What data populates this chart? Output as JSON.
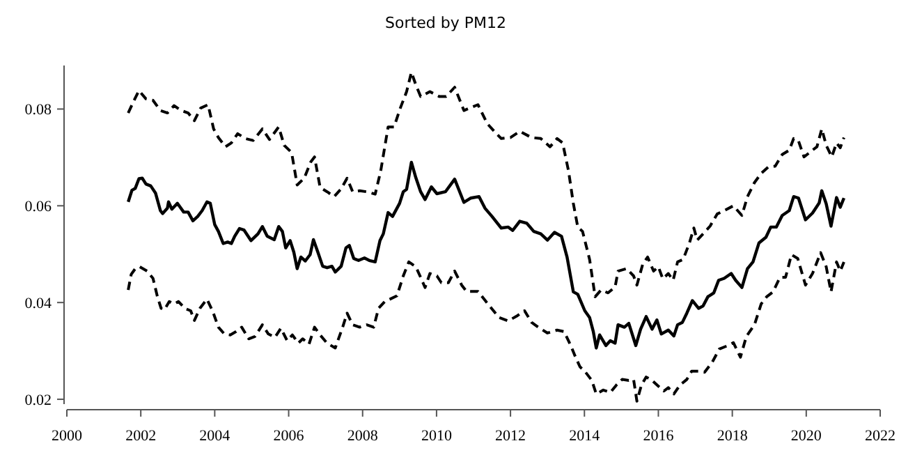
{
  "chart_data": {
    "type": "line",
    "title": "Sorted by PM12",
    "xlim": [
      2000,
      2022
    ],
    "xticks": [
      2000,
      2002,
      2004,
      2006,
      2008,
      2010,
      2012,
      2014,
      2016,
      2018,
      2020,
      2022
    ],
    "ylim": [
      0.019,
      0.089
    ],
    "yticks": [
      0.02,
      0.04,
      0.06,
      0.08
    ],
    "grid": false,
    "marker": "none",
    "series": [
      {
        "color": "#000000",
        "line_style": "dashed",
        "x": [
          2001.66,
          2001.82,
          2001.95,
          2002.14,
          2002.33,
          2002.53,
          2002.72,
          2002.9,
          2003.09,
          2003.28,
          2003.45,
          2003.62,
          2003.82,
          2003.97,
          2004.1,
          2004.29,
          2004.45,
          2004.62,
          2004.83,
          2005.04,
          2005.29,
          2005.48,
          2005.73,
          2005.88,
          2006.08,
          2006.23,
          2006.42,
          2006.6,
          2006.7,
          2006.85,
          2007.04,
          2007.23,
          2007.42,
          2007.58,
          2007.73,
          2007.92,
          2008.11,
          2008.34,
          2008.49,
          2008.69,
          2008.85,
          2009.02,
          2009.19,
          2009.32,
          2009.44,
          2009.57,
          2009.82,
          2010.07,
          2010.26,
          2010.49,
          2010.74,
          2011.12,
          2011.37,
          2011.62,
          2011.75,
          2012.0,
          2012.25,
          2012.57,
          2012.82,
          2013.07,
          2013.26,
          2013.41,
          2013.57,
          2013.7,
          2013.82,
          2013.95,
          2014.14,
          2014.29,
          2014.45,
          2014.64,
          2014.83,
          2014.91,
          2015.14,
          2015.33,
          2015.42,
          2015.58,
          2015.71,
          2015.87,
          2016.0,
          2016.12,
          2016.27,
          2016.4,
          2016.52,
          2016.67,
          2016.84,
          2016.96,
          2017.05,
          2017.21,
          2017.4,
          2017.59,
          2017.78,
          2018.03,
          2018.26,
          2018.41,
          2018.6,
          2018.78,
          2018.97,
          2019.16,
          2019.35,
          2019.54,
          2019.66,
          2019.79,
          2019.94,
          2020.17,
          2020.29,
          2020.42,
          2020.54,
          2020.69,
          2020.82,
          2020.92,
          2021.02
        ],
        "values": [
          0.0792,
          0.0818,
          0.0838,
          0.0821,
          0.0818,
          0.0797,
          0.0792,
          0.0807,
          0.0797,
          0.0792,
          0.0776,
          0.0802,
          0.0809,
          0.0759,
          0.0741,
          0.0722,
          0.073,
          0.0749,
          0.0739,
          0.0735,
          0.0759,
          0.0737,
          0.0763,
          0.0725,
          0.071,
          0.0643,
          0.0657,
          0.0691,
          0.0701,
          0.0638,
          0.0629,
          0.0619,
          0.0635,
          0.0657,
          0.0629,
          0.0631,
          0.0629,
          0.0624,
          0.0672,
          0.0763,
          0.0763,
          0.0802,
          0.0836,
          0.0876,
          0.085,
          0.0826,
          0.0836,
          0.0826,
          0.0826,
          0.0845,
          0.0797,
          0.0809,
          0.077,
          0.0749,
          0.0739,
          0.0741,
          0.0754,
          0.0741,
          0.0739,
          0.0722,
          0.0739,
          0.073,
          0.0672,
          0.0605,
          0.0556,
          0.0547,
          0.0489,
          0.0412,
          0.0426,
          0.042,
          0.0432,
          0.0465,
          0.047,
          0.0455,
          0.0436,
          0.048,
          0.0494,
          0.0465,
          0.0474,
          0.0449,
          0.046,
          0.0446,
          0.0484,
          0.0489,
          0.0523,
          0.0554,
          0.0529,
          0.0542,
          0.0558,
          0.0583,
          0.059,
          0.06,
          0.058,
          0.0619,
          0.0648,
          0.0667,
          0.068,
          0.0682,
          0.0706,
          0.0715,
          0.0739,
          0.0734,
          0.0701,
          0.0715,
          0.0722,
          0.0759,
          0.0725,
          0.0701,
          0.073,
          0.072,
          0.0741
        ]
      },
      {
        "color": "#000000",
        "line_style": "solid",
        "x": [
          2001.66,
          2001.76,
          2001.85,
          2001.95,
          2002.04,
          2002.14,
          2002.27,
          2002.4,
          2002.53,
          2002.59,
          2002.72,
          2002.75,
          2002.84,
          2002.99,
          2003.16,
          2003.28,
          2003.41,
          2003.54,
          2003.66,
          2003.79,
          2003.88,
          2004.0,
          2004.1,
          2004.23,
          2004.35,
          2004.45,
          2004.54,
          2004.67,
          2004.79,
          2004.98,
          2005.17,
          2005.29,
          2005.42,
          2005.61,
          2005.73,
          2005.83,
          2005.92,
          2006.04,
          2006.14,
          2006.23,
          2006.33,
          2006.45,
          2006.58,
          2006.67,
          2006.79,
          2006.92,
          2007.04,
          2007.17,
          2007.26,
          2007.42,
          2007.55,
          2007.64,
          2007.76,
          2007.89,
          2008.05,
          2008.18,
          2008.34,
          2008.47,
          2008.56,
          2008.69,
          2008.81,
          2009.0,
          2009.1,
          2009.19,
          2009.32,
          2009.44,
          2009.57,
          2009.69,
          2009.86,
          2010.01,
          2010.24,
          2010.49,
          2010.74,
          2010.93,
          2011.15,
          2011.31,
          2011.5,
          2011.75,
          2011.94,
          2012.06,
          2012.25,
          2012.44,
          2012.63,
          2012.82,
          2013.0,
          2013.19,
          2013.38,
          2013.53,
          2013.7,
          2013.82,
          2014.01,
          2014.14,
          2014.24,
          2014.32,
          2014.41,
          2014.58,
          2014.7,
          2014.83,
          2014.91,
          2015.08,
          2015.2,
          2015.39,
          2015.52,
          2015.67,
          2015.83,
          2015.96,
          2016.08,
          2016.27,
          2016.42,
          2016.52,
          2016.65,
          2016.77,
          2016.92,
          2017.09,
          2017.21,
          2017.34,
          2017.5,
          2017.63,
          2017.78,
          2017.97,
          2018.09,
          2018.26,
          2018.41,
          2018.56,
          2018.72,
          2018.91,
          2019.04,
          2019.19,
          2019.35,
          2019.54,
          2019.66,
          2019.79,
          2019.98,
          2020.17,
          2020.35,
          2020.42,
          2020.54,
          2020.67,
          2020.82,
          2020.92,
          2021.02
        ],
        "values": [
          0.0608,
          0.0632,
          0.0636,
          0.0656,
          0.0657,
          0.0645,
          0.0641,
          0.0626,
          0.059,
          0.0584,
          0.0595,
          0.0608,
          0.0593,
          0.0605,
          0.0587,
          0.0587,
          0.0569,
          0.0578,
          0.059,
          0.0608,
          0.0605,
          0.0561,
          0.0547,
          0.0522,
          0.0525,
          0.0522,
          0.0537,
          0.0553,
          0.055,
          0.0528,
          0.0542,
          0.0557,
          0.0537,
          0.053,
          0.0557,
          0.0547,
          0.0513,
          0.0528,
          0.0504,
          0.047,
          0.0494,
          0.0486,
          0.0499,
          0.053,
          0.0504,
          0.0475,
          0.0472,
          0.0475,
          0.0463,
          0.0475,
          0.0513,
          0.0518,
          0.0491,
          0.0487,
          0.0492,
          0.0487,
          0.0484,
          0.0528,
          0.0542,
          0.0586,
          0.0578,
          0.0605,
          0.0629,
          0.0634,
          0.069,
          0.0658,
          0.0629,
          0.0613,
          0.0639,
          0.0625,
          0.0629,
          0.0655,
          0.0607,
          0.0616,
          0.0619,
          0.0595,
          0.0578,
          0.0554,
          0.0556,
          0.0549,
          0.0568,
          0.0564,
          0.0547,
          0.0542,
          0.0529,
          0.0545,
          0.0537,
          0.0494,
          0.0422,
          0.0417,
          0.0383,
          0.0369,
          0.034,
          0.0306,
          0.0333,
          0.0311,
          0.0321,
          0.0316,
          0.0354,
          0.0349,
          0.0357,
          0.0311,
          0.0345,
          0.0371,
          0.0345,
          0.0364,
          0.0335,
          0.0343,
          0.0331,
          0.0354,
          0.0359,
          0.0378,
          0.0404,
          0.0388,
          0.0393,
          0.0412,
          0.042,
          0.0446,
          0.045,
          0.046,
          0.0446,
          0.0431,
          0.047,
          0.0484,
          0.0523,
          0.0535,
          0.0556,
          0.0556,
          0.058,
          0.059,
          0.0619,
          0.0616,
          0.0571,
          0.0585,
          0.0606,
          0.0631,
          0.0604,
          0.0558,
          0.0617,
          0.0597,
          0.0616
        ]
      },
      {
        "color": "#000000",
        "line_style": "dashed",
        "x": [
          2001.66,
          2001.74,
          2001.85,
          2001.97,
          2002.17,
          2002.33,
          2002.45,
          2002.55,
          2002.64,
          2002.77,
          2002.9,
          2003.02,
          2003.19,
          2003.35,
          2003.45,
          2003.6,
          2003.79,
          2003.95,
          2004.1,
          2004.26,
          2004.42,
          2004.58,
          2004.73,
          2004.92,
          2005.09,
          2005.29,
          2005.45,
          2005.63,
          2005.79,
          2005.96,
          2006.1,
          2006.26,
          2006.38,
          2006.55,
          2006.7,
          2006.85,
          2007.04,
          2007.26,
          2007.46,
          2007.58,
          2007.73,
          2007.92,
          2008.11,
          2008.3,
          2008.43,
          2008.6,
          2008.74,
          2008.93,
          2009.1,
          2009.25,
          2009.44,
          2009.57,
          2009.69,
          2009.82,
          2010.01,
          2010.13,
          2010.32,
          2010.49,
          2010.68,
          2010.81,
          2011.12,
          2011.37,
          2011.69,
          2011.94,
          2012.19,
          2012.38,
          2012.57,
          2012.75,
          2013.0,
          2013.26,
          2013.45,
          2013.63,
          2013.76,
          2013.88,
          2014.01,
          2014.2,
          2014.32,
          2014.51,
          2014.7,
          2014.86,
          2015.02,
          2015.2,
          2015.33,
          2015.42,
          2015.54,
          2015.67,
          2015.83,
          2016.0,
          2016.15,
          2016.27,
          2016.42,
          2016.58,
          2016.77,
          2016.9,
          2017.09,
          2017.25,
          2017.46,
          2017.65,
          2017.88,
          2018.03,
          2018.22,
          2018.38,
          2018.6,
          2018.78,
          2018.93,
          2019.1,
          2019.29,
          2019.44,
          2019.6,
          2019.77,
          2019.98,
          2020.17,
          2020.39,
          2020.54,
          2020.67,
          2020.82,
          2020.92,
          2021.02
        ],
        "values": [
          0.0426,
          0.0458,
          0.047,
          0.0474,
          0.0465,
          0.045,
          0.0412,
          0.0388,
          0.0385,
          0.0402,
          0.0397,
          0.0402,
          0.0388,
          0.0383,
          0.0363,
          0.0388,
          0.0407,
          0.0381,
          0.0349,
          0.0335,
          0.0333,
          0.034,
          0.0349,
          0.0325,
          0.033,
          0.0354,
          0.0335,
          0.0328,
          0.0347,
          0.0321,
          0.0333,
          0.0316,
          0.0325,
          0.0314,
          0.0349,
          0.0333,
          0.0316,
          0.0306,
          0.0349,
          0.0378,
          0.0354,
          0.0349,
          0.0354,
          0.0349,
          0.0388,
          0.0402,
          0.0407,
          0.0414,
          0.0455,
          0.0484,
          0.0474,
          0.0452,
          0.0431,
          0.046,
          0.0455,
          0.0441,
          0.0441,
          0.0465,
          0.0436,
          0.0423,
          0.0423,
          0.0399,
          0.0369,
          0.0362,
          0.0373,
          0.0383,
          0.0359,
          0.0349,
          0.0337,
          0.0343,
          0.034,
          0.0311,
          0.0287,
          0.0267,
          0.0258,
          0.0239,
          0.0211,
          0.0219,
          0.0214,
          0.0229,
          0.0241,
          0.0239,
          0.0241,
          0.0196,
          0.0229,
          0.0246,
          0.0239,
          0.0227,
          0.0217,
          0.0224,
          0.0211,
          0.0229,
          0.0241,
          0.0258,
          0.0258,
          0.0256,
          0.0277,
          0.0304,
          0.0311,
          0.0317,
          0.0287,
          0.033,
          0.0354,
          0.0397,
          0.0412,
          0.0422,
          0.0452,
          0.0452,
          0.0499,
          0.0491,
          0.0436,
          0.046,
          0.0503,
          0.0474,
          0.0422,
          0.0484,
          0.0465,
          0.0484
        ]
      }
    ]
  }
}
